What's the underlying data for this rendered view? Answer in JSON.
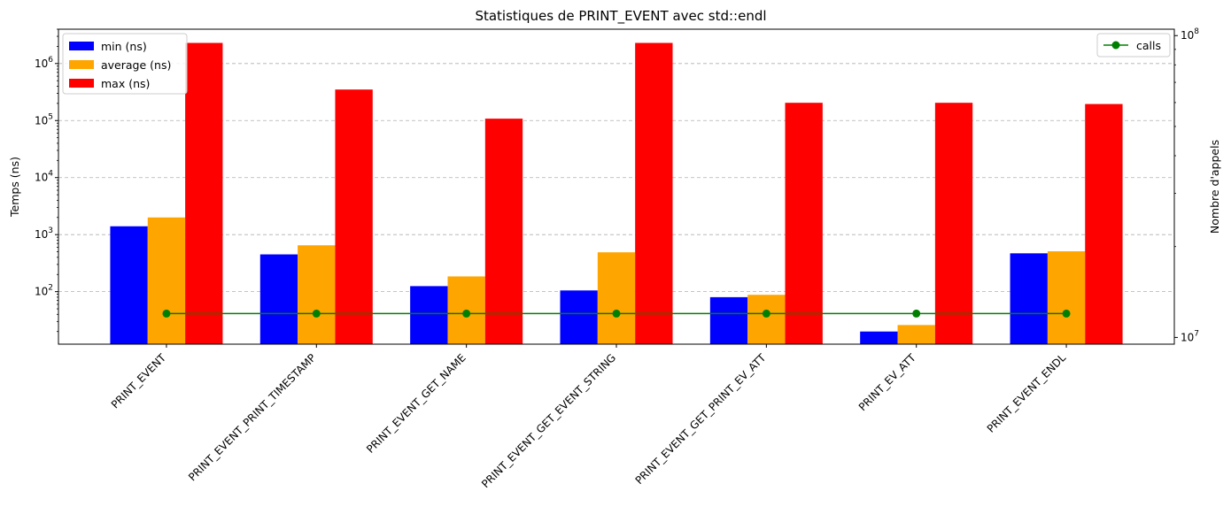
{
  "chart_data": {
    "type": "bar",
    "title": "Statistiques de PRINT_EVENT avec std::endl",
    "ylabel": "Temps (ns)",
    "y2label": "Nombre d'appels",
    "y_scale": "log",
    "y2_scale": "log",
    "ylim": [
      12,
      4000000
    ],
    "y2lim": [
      9500000,
      105000000
    ],
    "categories": [
      "PRINT_EVENT",
      "PRINT_EVENT_PRINT_TIMESTAMP",
      "PRINT_EVENT_GET_NAME",
      "PRINT_EVENT_GET_EVENT_STRING",
      "PRINT_EVENT_GET_PRINT_EV_ATT",
      "PRINT_EV_ATT",
      "PRINT_EVENT_ENDL"
    ],
    "series": [
      {
        "name": "min (ns)",
        "color": "#0000ff",
        "axis": "left",
        "kind": "bar",
        "values": [
          1400,
          450,
          125,
          105,
          80,
          20,
          470
        ]
      },
      {
        "name": "average (ns)",
        "color": "#ffa500",
        "axis": "left",
        "kind": "bar",
        "values": [
          2000,
          650,
          185,
          490,
          88,
          26,
          510
        ]
      },
      {
        "name": "max (ns)",
        "color": "#ff0000",
        "axis": "left",
        "kind": "bar",
        "values": [
          2300000,
          350000,
          108000,
          2300000,
          205000,
          205000,
          195000
        ]
      },
      {
        "name": "calls",
        "color": "#008000",
        "axis": "right",
        "kind": "line",
        "marker": "circle",
        "values": [
          12000000,
          12000000,
          12000000,
          12000000,
          12000000,
          12000000,
          12000000
        ]
      }
    ],
    "y_ticks": [
      {
        "base": "10",
        "exp": "2",
        "value": 100
      },
      {
        "base": "10",
        "exp": "3",
        "value": 1000
      },
      {
        "base": "10",
        "exp": "4",
        "value": 10000
      },
      {
        "base": "10",
        "exp": "5",
        "value": 100000
      },
      {
        "base": "10",
        "exp": "6",
        "value": 1000000
      }
    ],
    "y2_ticks": [
      {
        "base": "10",
        "exp": "7",
        "value": 10000000
      },
      {
        "base": "10",
        "exp": "8",
        "value": 100000000
      }
    ],
    "grid": "y-major-dashed",
    "legend_left_placement": "top-left",
    "legend_right_placement": "top-right"
  }
}
